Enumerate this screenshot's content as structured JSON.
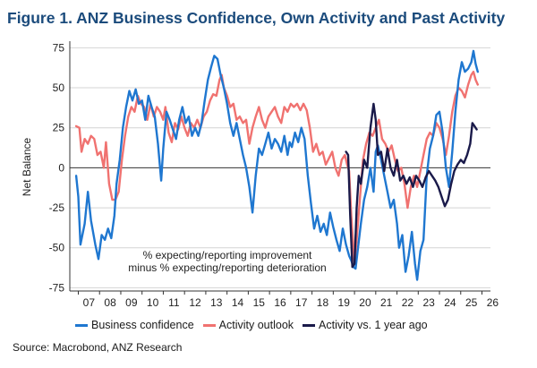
{
  "figure": {
    "title": "Figure 1.  ANZ Business Confidence, Own Activity and Past Activity",
    "source": "Source: Macrobond, ANZ Research"
  },
  "chart_data": {
    "type": "line",
    "ylabel": "Net Balance",
    "ylim": [
      -77,
      78
    ],
    "yticks": [
      -75,
      -50,
      -25,
      0,
      25,
      50,
      75
    ],
    "xlim": [
      2006.6,
      2026.4
    ],
    "xtick_labels": [
      "07",
      "08",
      "09",
      "10",
      "11",
      "12",
      "13",
      "14",
      "15",
      "16",
      "17",
      "18",
      "19",
      "20",
      "21",
      "22",
      "23",
      "24",
      "25",
      "26"
    ],
    "grid": "horizontal",
    "zero_line": true,
    "annotation": [
      "% expecting/reporting improvement",
      "minus % expecting/reporting deterioration"
    ],
    "legend_position": "bottom",
    "series": [
      {
        "name": "Business confidence",
        "color": "#1f77d0",
        "points": [
          [
            2006.9,
            -5
          ],
          [
            2007.0,
            -18
          ],
          [
            2007.1,
            -48
          ],
          [
            2007.3,
            -35
          ],
          [
            2007.45,
            -15
          ],
          [
            2007.6,
            -33
          ],
          [
            2007.8,
            -48
          ],
          [
            2007.95,
            -57
          ],
          [
            2008.1,
            -42
          ],
          [
            2008.25,
            -45
          ],
          [
            2008.4,
            -38
          ],
          [
            2008.55,
            -44
          ],
          [
            2008.7,
            -30
          ],
          [
            2008.8,
            -10
          ],
          [
            2008.95,
            5
          ],
          [
            2009.1,
            25
          ],
          [
            2009.25,
            38
          ],
          [
            2009.4,
            48
          ],
          [
            2009.55,
            42
          ],
          [
            2009.7,
            49
          ],
          [
            2009.85,
            40
          ],
          [
            2010.0,
            42
          ],
          [
            2010.15,
            30
          ],
          [
            2010.3,
            45
          ],
          [
            2010.45,
            38
          ],
          [
            2010.6,
            32
          ],
          [
            2010.75,
            15
          ],
          [
            2010.9,
            -8
          ],
          [
            2011.0,
            12
          ],
          [
            2011.15,
            35
          ],
          [
            2011.3,
            30
          ],
          [
            2011.45,
            24
          ],
          [
            2011.6,
            18
          ],
          [
            2011.75,
            30
          ],
          [
            2011.9,
            38
          ],
          [
            2012.05,
            28
          ],
          [
            2012.2,
            32
          ],
          [
            2012.35,
            20
          ],
          [
            2012.5,
            25
          ],
          [
            2012.65,
            20
          ],
          [
            2012.8,
            28
          ],
          [
            2012.95,
            42
          ],
          [
            2013.1,
            55
          ],
          [
            2013.25,
            63
          ],
          [
            2013.4,
            70
          ],
          [
            2013.55,
            68
          ],
          [
            2013.7,
            58
          ],
          [
            2013.85,
            50
          ],
          [
            2014.0,
            40
          ],
          [
            2014.15,
            28
          ],
          [
            2014.3,
            20
          ],
          [
            2014.45,
            28
          ],
          [
            2014.6,
            18
          ],
          [
            2014.75,
            8
          ],
          [
            2014.9,
            0
          ],
          [
            2015.05,
            -12
          ],
          [
            2015.2,
            -28
          ],
          [
            2015.35,
            -5
          ],
          [
            2015.5,
            12
          ],
          [
            2015.65,
            8
          ],
          [
            2015.8,
            15
          ],
          [
            2015.95,
            22
          ],
          [
            2016.1,
            12
          ],
          [
            2016.25,
            18
          ],
          [
            2016.4,
            15
          ],
          [
            2016.55,
            10
          ],
          [
            2016.7,
            20
          ],
          [
            2016.85,
            8
          ],
          [
            2016.95,
            16
          ],
          [
            2017.05,
            13
          ],
          [
            2017.2,
            22
          ],
          [
            2017.35,
            16
          ],
          [
            2017.5,
            25
          ],
          [
            2017.65,
            18
          ],
          [
            2017.8,
            -5
          ],
          [
            2017.95,
            -22
          ],
          [
            2018.1,
            -38
          ],
          [
            2018.25,
            -30
          ],
          [
            2018.4,
            -40
          ],
          [
            2018.55,
            -35
          ],
          [
            2018.7,
            -42
          ],
          [
            2018.85,
            -28
          ],
          [
            2019.0,
            -37
          ],
          [
            2019.15,
            -45
          ],
          [
            2019.3,
            -52
          ],
          [
            2019.45,
            -38
          ],
          [
            2019.6,
            -48
          ],
          [
            2019.75,
            -55
          ],
          [
            2019.85,
            -58
          ],
          [
            2019.95,
            -62
          ],
          [
            2020.05,
            -63
          ],
          [
            2020.15,
            -52
          ],
          [
            2020.3,
            -35
          ],
          [
            2020.45,
            -20
          ],
          [
            2020.6,
            -12
          ],
          [
            2020.75,
            0
          ],
          [
            2020.9,
            -15
          ],
          [
            2021.0,
            10
          ],
          [
            2021.1,
            14
          ],
          [
            2021.25,
            5
          ],
          [
            2021.4,
            -5
          ],
          [
            2021.55,
            -15
          ],
          [
            2021.7,
            -25
          ],
          [
            2021.85,
            -20
          ],
          [
            2022.0,
            -35
          ],
          [
            2022.1,
            -50
          ],
          [
            2022.25,
            -42
          ],
          [
            2022.4,
            -65
          ],
          [
            2022.55,
            -55
          ],
          [
            2022.7,
            -40
          ],
          [
            2022.85,
            -60
          ],
          [
            2022.95,
            -70
          ],
          [
            2023.1,
            -52
          ],
          [
            2023.25,
            -45
          ],
          [
            2023.4,
            -5
          ],
          [
            2023.55,
            12
          ],
          [
            2023.7,
            20
          ],
          [
            2023.85,
            33
          ],
          [
            2024.0,
            35
          ],
          [
            2024.15,
            22
          ],
          [
            2024.3,
            0
          ],
          [
            2024.45,
            -12
          ],
          [
            2024.6,
            10
          ],
          [
            2024.75,
            35
          ],
          [
            2024.9,
            55
          ],
          [
            2025.05,
            66
          ],
          [
            2025.2,
            60
          ],
          [
            2025.35,
            62
          ],
          [
            2025.5,
            66
          ],
          [
            2025.6,
            73
          ],
          [
            2025.7,
            65
          ],
          [
            2025.8,
            60
          ]
        ]
      },
      {
        "name": "Activity outlook",
        "color": "#f07270",
        "points": [
          [
            2006.9,
            26
          ],
          [
            2007.05,
            25
          ],
          [
            2007.15,
            10
          ],
          [
            2007.3,
            18
          ],
          [
            2007.45,
            15
          ],
          [
            2007.6,
            20
          ],
          [
            2007.75,
            18
          ],
          [
            2007.9,
            8
          ],
          [
            2008.05,
            10
          ],
          [
            2008.2,
            0
          ],
          [
            2008.3,
            16
          ],
          [
            2008.45,
            -10
          ],
          [
            2008.6,
            -20
          ],
          [
            2008.75,
            -20
          ],
          [
            2008.9,
            -15
          ],
          [
            2009.05,
            5
          ],
          [
            2009.2,
            20
          ],
          [
            2009.35,
            32
          ],
          [
            2009.5,
            38
          ],
          [
            2009.65,
            35
          ],
          [
            2009.8,
            45
          ],
          [
            2009.95,
            40
          ],
          [
            2010.1,
            38
          ],
          [
            2010.25,
            30
          ],
          [
            2010.4,
            40
          ],
          [
            2010.55,
            32
          ],
          [
            2010.7,
            38
          ],
          [
            2010.85,
            35
          ],
          [
            2011.0,
            30
          ],
          [
            2011.1,
            38
          ],
          [
            2011.25,
            22
          ],
          [
            2011.4,
            16
          ],
          [
            2011.55,
            28
          ],
          [
            2011.7,
            24
          ],
          [
            2011.85,
            32
          ],
          [
            2012.0,
            25
          ],
          [
            2012.15,
            20
          ],
          [
            2012.3,
            28
          ],
          [
            2012.45,
            25
          ],
          [
            2012.6,
            30
          ],
          [
            2012.75,
            25
          ],
          [
            2012.9,
            32
          ],
          [
            2013.05,
            35
          ],
          [
            2013.2,
            42
          ],
          [
            2013.35,
            46
          ],
          [
            2013.5,
            45
          ],
          [
            2013.65,
            55
          ],
          [
            2013.75,
            58
          ],
          [
            2013.85,
            50
          ],
          [
            2014.0,
            45
          ],
          [
            2014.15,
            38
          ],
          [
            2014.3,
            40
          ],
          [
            2014.45,
            30
          ],
          [
            2014.6,
            32
          ],
          [
            2014.75,
            28
          ],
          [
            2014.9,
            30
          ],
          [
            2015.05,
            15
          ],
          [
            2015.2,
            25
          ],
          [
            2015.35,
            32
          ],
          [
            2015.5,
            38
          ],
          [
            2015.65,
            30
          ],
          [
            2015.8,
            25
          ],
          [
            2015.95,
            32
          ],
          [
            2016.1,
            35
          ],
          [
            2016.25,
            38
          ],
          [
            2016.4,
            32
          ],
          [
            2016.55,
            28
          ],
          [
            2016.7,
            38
          ],
          [
            2016.85,
            35
          ],
          [
            2017.0,
            40
          ],
          [
            2017.15,
            38
          ],
          [
            2017.3,
            40
          ],
          [
            2017.45,
            36
          ],
          [
            2017.6,
            40
          ],
          [
            2017.75,
            36
          ],
          [
            2017.9,
            25
          ],
          [
            2018.05,
            10
          ],
          [
            2018.2,
            15
          ],
          [
            2018.35,
            8
          ],
          [
            2018.5,
            10
          ],
          [
            2018.65,
            2
          ],
          [
            2018.8,
            6
          ],
          [
            2018.95,
            10
          ],
          [
            2019.1,
            0
          ],
          [
            2019.25,
            -5
          ],
          [
            2019.4,
            5
          ],
          [
            2019.55,
            8
          ],
          [
            2019.65,
            2
          ],
          [
            2019.75,
            -2
          ],
          [
            2019.85,
            -30
          ],
          [
            2020.0,
            -60
          ],
          [
            2020.1,
            -45
          ],
          [
            2020.25,
            -20
          ],
          [
            2020.4,
            5
          ],
          [
            2020.55,
            15
          ],
          [
            2020.7,
            22
          ],
          [
            2020.85,
            20
          ],
          [
            2021.0,
            25
          ],
          [
            2021.15,
            30
          ],
          [
            2021.3,
            18
          ],
          [
            2021.45,
            15
          ],
          [
            2021.6,
            10
          ],
          [
            2021.75,
            14
          ],
          [
            2021.9,
            5
          ],
          [
            2022.05,
            -2
          ],
          [
            2022.2,
            0
          ],
          [
            2022.35,
            -10
          ],
          [
            2022.5,
            -25
          ],
          [
            2022.65,
            -12
          ],
          [
            2022.8,
            -5
          ],
          [
            2022.95,
            -12
          ],
          [
            2023.1,
            -2
          ],
          [
            2023.25,
            8
          ],
          [
            2023.4,
            18
          ],
          [
            2023.55,
            22
          ],
          [
            2023.7,
            20
          ],
          [
            2023.85,
            28
          ],
          [
            2024.0,
            25
          ],
          [
            2024.15,
            18
          ],
          [
            2024.3,
            8
          ],
          [
            2024.45,
            20
          ],
          [
            2024.6,
            35
          ],
          [
            2024.75,
            45
          ],
          [
            2024.9,
            50
          ],
          [
            2025.05,
            48
          ],
          [
            2025.2,
            44
          ],
          [
            2025.35,
            52
          ],
          [
            2025.5,
            58
          ],
          [
            2025.6,
            60
          ],
          [
            2025.7,
            55
          ],
          [
            2025.8,
            52
          ]
        ]
      },
      {
        "name": "Activity vs. 1 year ago",
        "color": "#1a1a4a",
        "points": [
          [
            2019.6,
            10
          ],
          [
            2019.7,
            8
          ],
          [
            2019.8,
            -30
          ],
          [
            2019.9,
            -62
          ],
          [
            2020.0,
            -60
          ],
          [
            2020.1,
            -25
          ],
          [
            2020.2,
            -5
          ],
          [
            2020.3,
            -10
          ],
          [
            2020.45,
            5
          ],
          [
            2020.6,
            0
          ],
          [
            2020.75,
            25
          ],
          [
            2020.9,
            40
          ],
          [
            2021.0,
            30
          ],
          [
            2021.1,
            8
          ],
          [
            2021.25,
            10
          ],
          [
            2021.4,
            -2
          ],
          [
            2021.55,
            12
          ],
          [
            2021.7,
            0
          ],
          [
            2021.85,
            -5
          ],
          [
            2022.0,
            5
          ],
          [
            2022.15,
            -8
          ],
          [
            2022.3,
            -5
          ],
          [
            2022.45,
            -10
          ],
          [
            2022.6,
            -6
          ],
          [
            2022.75,
            -12
          ],
          [
            2022.9,
            -5
          ],
          [
            2023.05,
            -8
          ],
          [
            2023.2,
            -12
          ],
          [
            2023.35,
            -6
          ],
          [
            2023.5,
            -2
          ],
          [
            2023.65,
            -5
          ],
          [
            2023.8,
            -8
          ],
          [
            2023.95,
            -12
          ],
          [
            2024.1,
            -18
          ],
          [
            2024.25,
            -24
          ],
          [
            2024.4,
            -20
          ],
          [
            2024.55,
            -10
          ],
          [
            2024.7,
            -2
          ],
          [
            2024.85,
            2
          ],
          [
            2025.0,
            5
          ],
          [
            2025.15,
            3
          ],
          [
            2025.3,
            8
          ],
          [
            2025.45,
            15
          ],
          [
            2025.55,
            28
          ],
          [
            2025.65,
            26
          ],
          [
            2025.75,
            24
          ]
        ]
      }
    ]
  }
}
